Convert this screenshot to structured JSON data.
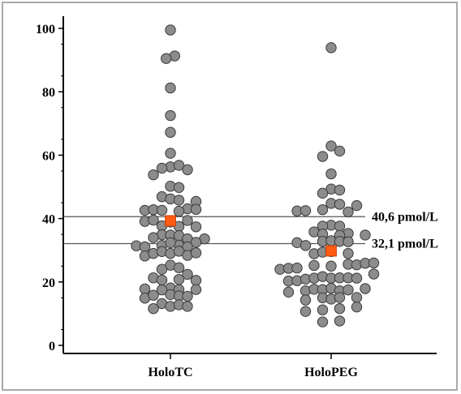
{
  "chart_data": {
    "type": "scatter",
    "title": "",
    "xlabel": "",
    "ylabel": "",
    "categories": [
      "HoloTC",
      "HoloPEG"
    ],
    "ylim": [
      0,
      100
    ],
    "yticks": [
      0,
      20,
      40,
      60,
      80,
      100
    ],
    "grid": false,
    "colors": {
      "point": "#8c8c8c",
      "point_edge": "#3a3a3a",
      "mean": "#ff5a14",
      "line": "#555555"
    },
    "reference_lines": [
      {
        "value": 40.6,
        "label": "40,6 pmol/L"
      },
      {
        "value": 32.1,
        "label": "32,1 pmol/L"
      }
    ],
    "series": [
      {
        "category": "HoloTC",
        "mean": 39.3,
        "points": [
          {
            "offset": 0,
            "y": 99.5
          },
          {
            "offset": 0.5,
            "y": 91.3
          },
          {
            "offset": -0.5,
            "y": 90.5
          },
          {
            "offset": 0,
            "y": 81.2
          },
          {
            "offset": 0,
            "y": 72.5
          },
          {
            "offset": 0,
            "y": 67.2
          },
          {
            "offset": 0,
            "y": 60.6
          },
          {
            "offset": 0,
            "y": 56.3
          },
          {
            "offset": 1,
            "y": 56.8
          },
          {
            "offset": -1,
            "y": 55.9
          },
          {
            "offset": 2,
            "y": 55.4
          },
          {
            "offset": -2,
            "y": 53.8
          },
          {
            "offset": 0,
            "y": 50.2
          },
          {
            "offset": 1,
            "y": 49.8
          },
          {
            "offset": -1,
            "y": 46.9
          },
          {
            "offset": 0,
            "y": 46.2
          },
          {
            "offset": 1,
            "y": 45.8
          },
          {
            "offset": 3,
            "y": 45.4
          },
          {
            "offset": -3,
            "y": 42.6
          },
          {
            "offset": -2,
            "y": 42.8
          },
          {
            "offset": 2,
            "y": 43.1
          },
          {
            "offset": 3,
            "y": 42.9
          },
          {
            "offset": -1,
            "y": 42.6
          },
          {
            "offset": 1,
            "y": 42.3
          },
          {
            "offset": -3,
            "y": 39.1
          },
          {
            "offset": -2,
            "y": 39.5
          },
          {
            "offset": 0,
            "y": 38.9
          },
          {
            "offset": 2,
            "y": 39.4
          },
          {
            "offset": -1,
            "y": 37.7
          },
          {
            "offset": 1,
            "y": 37.5
          },
          {
            "offset": 3,
            "y": 37.4
          },
          {
            "offset": -1,
            "y": 34.9
          },
          {
            "offset": 0,
            "y": 34.8
          },
          {
            "offset": 1,
            "y": 34.6
          },
          {
            "offset": -2,
            "y": 34.0
          },
          {
            "offset": 2,
            "y": 33.6
          },
          {
            "offset": 4,
            "y": 33.6
          },
          {
            "offset": -4,
            "y": 31.4
          },
          {
            "offset": -3,
            "y": 31.1
          },
          {
            "offset": -1,
            "y": 31.5
          },
          {
            "offset": 1,
            "y": 31.6
          },
          {
            "offset": 3,
            "y": 32.5
          },
          {
            "offset": 2,
            "y": 31.1
          },
          {
            "offset": 0,
            "y": 32.4
          },
          {
            "offset": -3,
            "y": 28.2
          },
          {
            "offset": -2,
            "y": 29.0
          },
          {
            "offset": -1,
            "y": 29.6
          },
          {
            "offset": 0,
            "y": 29.0
          },
          {
            "offset": 1,
            "y": 29.7
          },
          {
            "offset": 2,
            "y": 28.4
          },
          {
            "offset": 3,
            "y": 29.2
          },
          {
            "offset": 0,
            "y": 25.3
          },
          {
            "offset": -1,
            "y": 24.0
          },
          {
            "offset": 1,
            "y": 24.5
          },
          {
            "offset": 2,
            "y": 22.4
          },
          {
            "offset": -2,
            "y": 21.3
          },
          {
            "offset": -1,
            "y": 20.6
          },
          {
            "offset": 1,
            "y": 20.8
          },
          {
            "offset": 3,
            "y": 20.5
          },
          {
            "offset": -3,
            "y": 17.8
          },
          {
            "offset": 0,
            "y": 18.1
          },
          {
            "offset": -1,
            "y": 17.5
          },
          {
            "offset": 1,
            "y": 17.6
          },
          {
            "offset": 3,
            "y": 17.6
          },
          {
            "offset": -3,
            "y": 14.9
          },
          {
            "offset": -2,
            "y": 15.8
          },
          {
            "offset": 0,
            "y": 16.0
          },
          {
            "offset": 1,
            "y": 15.6
          },
          {
            "offset": 2,
            "y": 15.5
          },
          {
            "offset": -1,
            "y": 13.2
          },
          {
            "offset": 0,
            "y": 12.3
          },
          {
            "offset": 1,
            "y": 12.8
          },
          {
            "offset": 2,
            "y": 12.3
          },
          {
            "offset": -2,
            "y": 11.6
          }
        ]
      },
      {
        "category": "HoloPEG",
        "mean": 29.8,
        "points": [
          {
            "offset": 0,
            "y": 93.9
          },
          {
            "offset": 0,
            "y": 62.9
          },
          {
            "offset": 1,
            "y": 61.3
          },
          {
            "offset": -1,
            "y": 59.6
          },
          {
            "offset": 0,
            "y": 54.1
          },
          {
            "offset": 0,
            "y": 49.3
          },
          {
            "offset": 1,
            "y": 49.0
          },
          {
            "offset": -1,
            "y": 48.0
          },
          {
            "offset": 0,
            "y": 44.8
          },
          {
            "offset": 1,
            "y": 44.5
          },
          {
            "offset": 3,
            "y": 44.1
          },
          {
            "offset": -4,
            "y": 42.4
          },
          {
            "offset": -3,
            "y": 42.5
          },
          {
            "offset": -1,
            "y": 42.8
          },
          {
            "offset": 2,
            "y": 42.1
          },
          {
            "offset": 0,
            "y": 37.9
          },
          {
            "offset": -1,
            "y": 37.6
          },
          {
            "offset": 1,
            "y": 37.6
          },
          {
            "offset": -2,
            "y": 35.8
          },
          {
            "offset": 2,
            "y": 35.3
          },
          {
            "offset": 4,
            "y": 34.8
          },
          {
            "offset": -1,
            "y": 35.1
          },
          {
            "offset": 1,
            "y": 34.7
          },
          {
            "offset": -4,
            "y": 32.4
          },
          {
            "offset": -3,
            "y": 31.5
          },
          {
            "offset": -1,
            "y": 32.8
          },
          {
            "offset": 0,
            "y": 33.0
          },
          {
            "offset": 1,
            "y": 32.8
          },
          {
            "offset": 2,
            "y": 32.7
          },
          {
            "offset": -2,
            "y": 28.9
          },
          {
            "offset": -1,
            "y": 29.4
          },
          {
            "offset": 0,
            "y": 29.6
          },
          {
            "offset": 2,
            "y": 29.0
          },
          {
            "offset": -6,
            "y": 24.0
          },
          {
            "offset": -5,
            "y": 24.3
          },
          {
            "offset": -4,
            "y": 24.4
          },
          {
            "offset": -2,
            "y": 25.2
          },
          {
            "offset": 0,
            "y": 25.0
          },
          {
            "offset": 2,
            "y": 25.6
          },
          {
            "offset": 3,
            "y": 25.4
          },
          {
            "offset": 4,
            "y": 25.9
          },
          {
            "offset": 5,
            "y": 26.0
          },
          {
            "offset": -5,
            "y": 20.3
          },
          {
            "offset": -4,
            "y": 20.4
          },
          {
            "offset": -3,
            "y": 20.9
          },
          {
            "offset": -2,
            "y": 21.2
          },
          {
            "offset": -1,
            "y": 21.7
          },
          {
            "offset": 0,
            "y": 21.2
          },
          {
            "offset": 1,
            "y": 21.3
          },
          {
            "offset": 2,
            "y": 21.3
          },
          {
            "offset": 3,
            "y": 21.2
          },
          {
            "offset": 5,
            "y": 22.5
          },
          {
            "offset": -5,
            "y": 16.8
          },
          {
            "offset": -3,
            "y": 17.2
          },
          {
            "offset": -2,
            "y": 17.7
          },
          {
            "offset": -1,
            "y": 17.6
          },
          {
            "offset": 0,
            "y": 18.0
          },
          {
            "offset": 1,
            "y": 17.2
          },
          {
            "offset": 2,
            "y": 17.5
          },
          {
            "offset": 4,
            "y": 17.9
          },
          {
            "offset": -3,
            "y": 14.3
          },
          {
            "offset": -1,
            "y": 15.0
          },
          {
            "offset": 0,
            "y": 14.6
          },
          {
            "offset": 1,
            "y": 15.1
          },
          {
            "offset": 3,
            "y": 15.1
          },
          {
            "offset": -3,
            "y": 10.7
          },
          {
            "offset": -1,
            "y": 11.2
          },
          {
            "offset": 1,
            "y": 11.6
          },
          {
            "offset": 3,
            "y": 12.1
          },
          {
            "offset": -1,
            "y": 7.4
          },
          {
            "offset": 1,
            "y": 7.7
          }
        ]
      }
    ]
  }
}
